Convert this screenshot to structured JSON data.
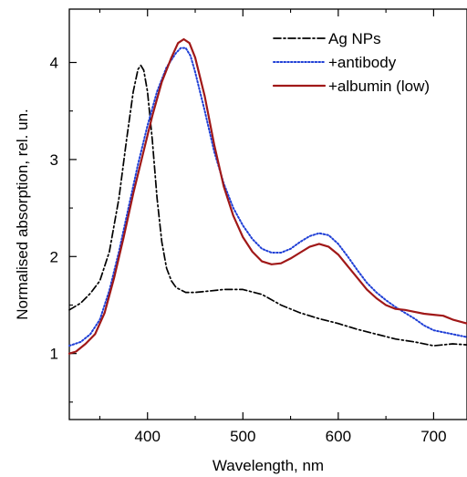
{
  "chart_data": {
    "type": "line",
    "title": "",
    "xlabel": "Wavelength, nm",
    "ylabel": "Normalised absorption, rel. un.",
    "xlim": [
      318,
      735
    ],
    "ylim": [
      0.32,
      4.55
    ],
    "x_major_ticks": [
      400,
      500,
      600,
      700
    ],
    "x_minor_ticks": [
      350,
      450,
      550,
      650
    ],
    "y_major_ticks": [
      1,
      2,
      3,
      4
    ],
    "y_minor_ticks": [
      0.5,
      1.5,
      2.5,
      3.5
    ],
    "grid": false,
    "legend_position": "top-right",
    "series": [
      {
        "name": "Ag NPs",
        "color": "#000000",
        "dash": "dash-dot",
        "points": [
          [
            318,
            1.45
          ],
          [
            330,
            1.52
          ],
          [
            340,
            1.62
          ],
          [
            350,
            1.75
          ],
          [
            360,
            2.05
          ],
          [
            370,
            2.6
          ],
          [
            378,
            3.2
          ],
          [
            385,
            3.7
          ],
          [
            390,
            3.93
          ],
          [
            393,
            3.97
          ],
          [
            396,
            3.92
          ],
          [
            400,
            3.7
          ],
          [
            405,
            3.2
          ],
          [
            410,
            2.6
          ],
          [
            415,
            2.15
          ],
          [
            420,
            1.88
          ],
          [
            425,
            1.75
          ],
          [
            430,
            1.68
          ],
          [
            440,
            1.63
          ],
          [
            450,
            1.63
          ],
          [
            460,
            1.64
          ],
          [
            480,
            1.66
          ],
          [
            500,
            1.66
          ],
          [
            520,
            1.61
          ],
          [
            540,
            1.5
          ],
          [
            560,
            1.42
          ],
          [
            580,
            1.36
          ],
          [
            600,
            1.31
          ],
          [
            620,
            1.25
          ],
          [
            640,
            1.2
          ],
          [
            660,
            1.15
          ],
          [
            680,
            1.12
          ],
          [
            700,
            1.08
          ],
          [
            720,
            1.1
          ],
          [
            735,
            1.09
          ]
        ]
      },
      {
        "name": "+antibody",
        "color": "#1f3fd6",
        "dash": "dotted",
        "points": [
          [
            318,
            1.08
          ],
          [
            330,
            1.12
          ],
          [
            340,
            1.2
          ],
          [
            350,
            1.35
          ],
          [
            360,
            1.65
          ],
          [
            370,
            2.05
          ],
          [
            380,
            2.5
          ],
          [
            390,
            2.95
          ],
          [
            400,
            3.35
          ],
          [
            410,
            3.7
          ],
          [
            420,
            3.95
          ],
          [
            430,
            4.1
          ],
          [
            435,
            4.15
          ],
          [
            440,
            4.15
          ],
          [
            445,
            4.07
          ],
          [
            450,
            3.9
          ],
          [
            460,
            3.5
          ],
          [
            470,
            3.08
          ],
          [
            480,
            2.75
          ],
          [
            490,
            2.5
          ],
          [
            500,
            2.32
          ],
          [
            510,
            2.18
          ],
          [
            520,
            2.08
          ],
          [
            530,
            2.04
          ],
          [
            540,
            2.04
          ],
          [
            550,
            2.08
          ],
          [
            560,
            2.15
          ],
          [
            570,
            2.21
          ],
          [
            580,
            2.24
          ],
          [
            590,
            2.22
          ],
          [
            600,
            2.13
          ],
          [
            610,
            2.0
          ],
          [
            620,
            1.86
          ],
          [
            630,
            1.73
          ],
          [
            640,
            1.63
          ],
          [
            650,
            1.55
          ],
          [
            660,
            1.48
          ],
          [
            670,
            1.42
          ],
          [
            680,
            1.36
          ],
          [
            690,
            1.29
          ],
          [
            700,
            1.24
          ],
          [
            710,
            1.22
          ],
          [
            720,
            1.2
          ],
          [
            735,
            1.17
          ]
        ]
      },
      {
        "name": "+albumin (low)",
        "color": "#a01818",
        "dash": "solid",
        "points": [
          [
            318,
            1.0
          ],
          [
            325,
            1.02
          ],
          [
            335,
            1.1
          ],
          [
            345,
            1.2
          ],
          [
            355,
            1.42
          ],
          [
            365,
            1.78
          ],
          [
            375,
            2.2
          ],
          [
            385,
            2.65
          ],
          [
            395,
            3.05
          ],
          [
            405,
            3.45
          ],
          [
            415,
            3.8
          ],
          [
            425,
            4.05
          ],
          [
            432,
            4.2
          ],
          [
            438,
            4.24
          ],
          [
            444,
            4.2
          ],
          [
            450,
            4.05
          ],
          [
            460,
            3.65
          ],
          [
            470,
            3.15
          ],
          [
            480,
            2.72
          ],
          [
            490,
            2.42
          ],
          [
            500,
            2.2
          ],
          [
            510,
            2.05
          ],
          [
            520,
            1.95
          ],
          [
            530,
            1.92
          ],
          [
            540,
            1.93
          ],
          [
            550,
            1.98
          ],
          [
            560,
            2.04
          ],
          [
            570,
            2.1
          ],
          [
            580,
            2.13
          ],
          [
            590,
            2.1
          ],
          [
            600,
            2.02
          ],
          [
            610,
            1.9
          ],
          [
            620,
            1.78
          ],
          [
            630,
            1.66
          ],
          [
            640,
            1.57
          ],
          [
            650,
            1.5
          ],
          [
            660,
            1.46
          ],
          [
            670,
            1.45
          ],
          [
            680,
            1.43
          ],
          [
            690,
            1.41
          ],
          [
            700,
            1.4
          ],
          [
            710,
            1.39
          ],
          [
            720,
            1.35
          ],
          [
            735,
            1.31
          ]
        ]
      }
    ]
  }
}
